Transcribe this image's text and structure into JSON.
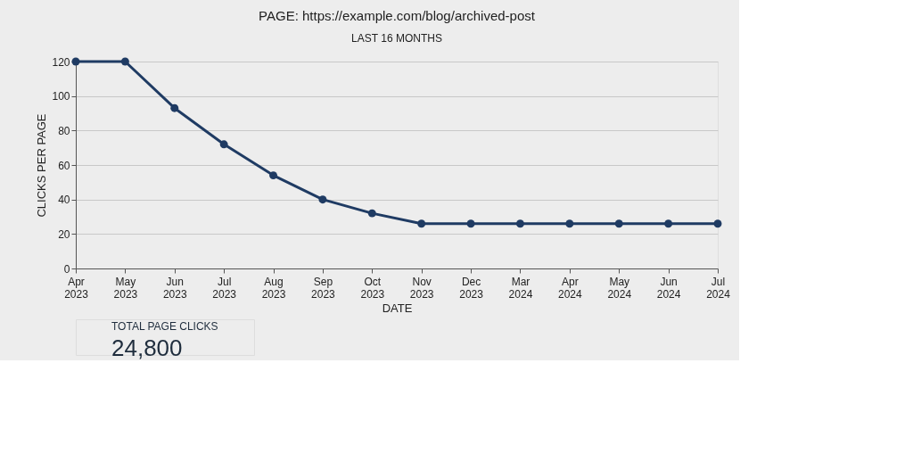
{
  "chart_data": {
    "type": "line",
    "title": "PAGE: https://example.com/blog/archived-post",
    "subtitle": "LAST 16 MONTHS",
    "xlabel": "DATE",
    "ylabel": "CLICKS PER PAGE",
    "categories": [
      "Apr 2023",
      "May 2023",
      "Jun 2023",
      "Jul 2023",
      "Aug 2023",
      "Sep 2023",
      "Oct 2023",
      "Nov 2023",
      "Dec 2023",
      "Mar 2024",
      "Apr 2024",
      "May 2024",
      "Jun 2024",
      "Jul 2024"
    ],
    "series": [
      {
        "color": "#1f3b63",
        "values": [
          120,
          120,
          93,
          72,
          54,
          40,
          32,
          26,
          26,
          26,
          26,
          26,
          26,
          26
        ]
      }
    ],
    "ylim": [
      0,
      120
    ],
    "yticks": [
      0,
      20,
      40,
      60,
      80,
      100,
      120
    ],
    "grid": "y",
    "marker": "circle",
    "line_style": "solid",
    "annotations": [
      "TOTAL PAGE CLICKS",
      "24,800"
    ]
  }
}
